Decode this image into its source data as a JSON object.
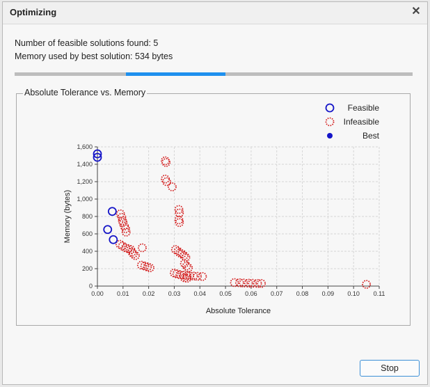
{
  "window": {
    "title": "Optimizing",
    "close_glyph": "✕"
  },
  "status": {
    "feasible_line": "Number of feasible solutions found: 5",
    "memory_line": "Memory used by best solution: 534 bytes"
  },
  "progress": {
    "start": 0.28,
    "end": 0.53,
    "fill_color": "#1e90ee"
  },
  "plot_panel": {
    "label": "Absolute Tolerance vs. Memory"
  },
  "buttons": {
    "stop": "Stop"
  },
  "chart_data": {
    "type": "scatter",
    "title": "",
    "xlabel": "Absolute Tolerance",
    "ylabel": "Memory (bytes)",
    "xlim": [
      0,
      0.11
    ],
    "ylim": [
      0,
      1600
    ],
    "x_ticks": [
      0,
      0.01,
      0.02,
      0.03,
      0.04,
      0.05,
      0.06,
      0.07,
      0.08,
      0.09,
      0.1,
      0.11
    ],
    "x_tick_labels": [
      "0.00",
      "0.01",
      "0.02",
      "0.03",
      "0.04",
      "0.05",
      "0.06",
      "0.07",
      "0.08",
      "0.09",
      "0.10",
      "0.11"
    ],
    "y_ticks": [
      0,
      200,
      400,
      600,
      800,
      1000,
      1200,
      1400,
      1600
    ],
    "y_tick_labels": [
      "0",
      "200",
      "400",
      "600",
      "800",
      "1,000",
      "1,200",
      "1,400",
      "1,600"
    ],
    "grid": true,
    "legend_position": "top-right",
    "series": [
      {
        "name": "Feasible",
        "color": "#1515c8",
        "marker": "open-circle",
        "points": [
          [
            0,
            1520
          ],
          [
            0,
            1480
          ],
          [
            0.0058,
            858
          ],
          [
            0.004,
            650
          ],
          [
            0.0062,
            534
          ]
        ]
      },
      {
        "name": "Infeasible",
        "color": "#d42020",
        "marker": "dotted-circle",
        "points": [
          [
            0.0265,
            1440
          ],
          [
            0.0268,
            1420
          ],
          [
            0.0265,
            1230
          ],
          [
            0.027,
            1200
          ],
          [
            0.0292,
            1140
          ],
          [
            0.0318,
            880
          ],
          [
            0.032,
            840
          ],
          [
            0.0318,
            760
          ],
          [
            0.032,
            730
          ],
          [
            0.009,
            830
          ],
          [
            0.0095,
            790
          ],
          [
            0.0098,
            750
          ],
          [
            0.01,
            730
          ],
          [
            0.0105,
            690
          ],
          [
            0.011,
            660
          ],
          [
            0.0112,
            620
          ],
          [
            0.0088,
            480
          ],
          [
            0.0098,
            460
          ],
          [
            0.011,
            440
          ],
          [
            0.012,
            430
          ],
          [
            0.013,
            420
          ],
          [
            0.0135,
            390
          ],
          [
            0.014,
            370
          ],
          [
            0.0148,
            350
          ],
          [
            0.0175,
            440
          ],
          [
            0.0172,
            240
          ],
          [
            0.0185,
            230
          ],
          [
            0.0195,
            220
          ],
          [
            0.0205,
            210
          ],
          [
            0.0305,
            420
          ],
          [
            0.0315,
            400
          ],
          [
            0.0322,
            380
          ],
          [
            0.033,
            370
          ],
          [
            0.0338,
            350
          ],
          [
            0.0345,
            330
          ],
          [
            0.034,
            260
          ],
          [
            0.0348,
            230
          ],
          [
            0.0355,
            210
          ],
          [
            0.03,
            150
          ],
          [
            0.031,
            140
          ],
          [
            0.0322,
            130
          ],
          [
            0.0335,
            125
          ],
          [
            0.035,
            120
          ],
          [
            0.036,
            118
          ],
          [
            0.0375,
            115
          ],
          [
            0.039,
            112
          ],
          [
            0.041,
            110
          ],
          [
            0.034,
            95
          ],
          [
            0.035,
            90
          ],
          [
            0.0535,
            40
          ],
          [
            0.0555,
            38
          ],
          [
            0.057,
            35
          ],
          [
            0.059,
            33
          ],
          [
            0.0605,
            32
          ],
          [
            0.0625,
            30
          ],
          [
            0.064,
            30
          ],
          [
            0.105,
            20
          ]
        ]
      },
      {
        "name": "Best",
        "color": "#1515c8",
        "marker": "filled-circle",
        "points": []
      }
    ]
  }
}
